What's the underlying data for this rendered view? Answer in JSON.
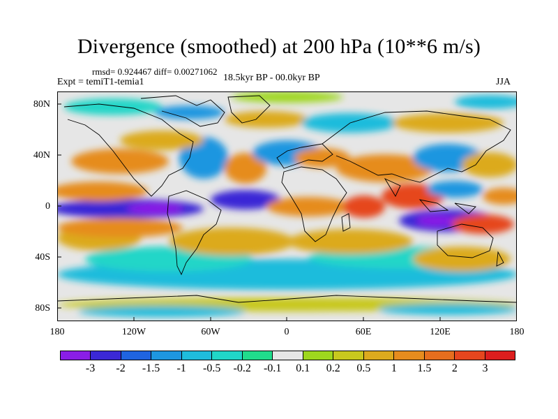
{
  "title": "Divergence (smoothed) at 200 hPa (10**6 m/s)",
  "stats": "rmsd= 0.924467 diff= 0.00271062",
  "experiment": "Expt = temiT1-temia1",
  "period": "18.5kyr BP - 00.0kyr BP",
  "season": "JJA",
  "y_axis_labels": [
    "80N",
    "40N",
    "0",
    "40S",
    "80S"
  ],
  "x_axis_labels": [
    "180",
    "120W",
    "60W",
    "0",
    "60E",
    "120E",
    "180"
  ],
  "colorbar": {
    "colors": [
      "#8a1ee6",
      "#3b28d6",
      "#1f64e0",
      "#1e96e0",
      "#1fbcdc",
      "#20d6c8",
      "#20dc8c",
      "#e6e6e6",
      "#9ed71e",
      "#c8c81e",
      "#dcaa1e",
      "#e68c1e",
      "#e66e1e",
      "#e6461e",
      "#dc1e1e"
    ],
    "labels": [
      "-3",
      "-2",
      "-1.5",
      "-1",
      "-0.5",
      "-0.2",
      "-0.1",
      "0.1",
      "0.2",
      "0.5",
      "1",
      "1.5",
      "2",
      "3"
    ]
  },
  "map_icon": "world-coastline-map"
}
